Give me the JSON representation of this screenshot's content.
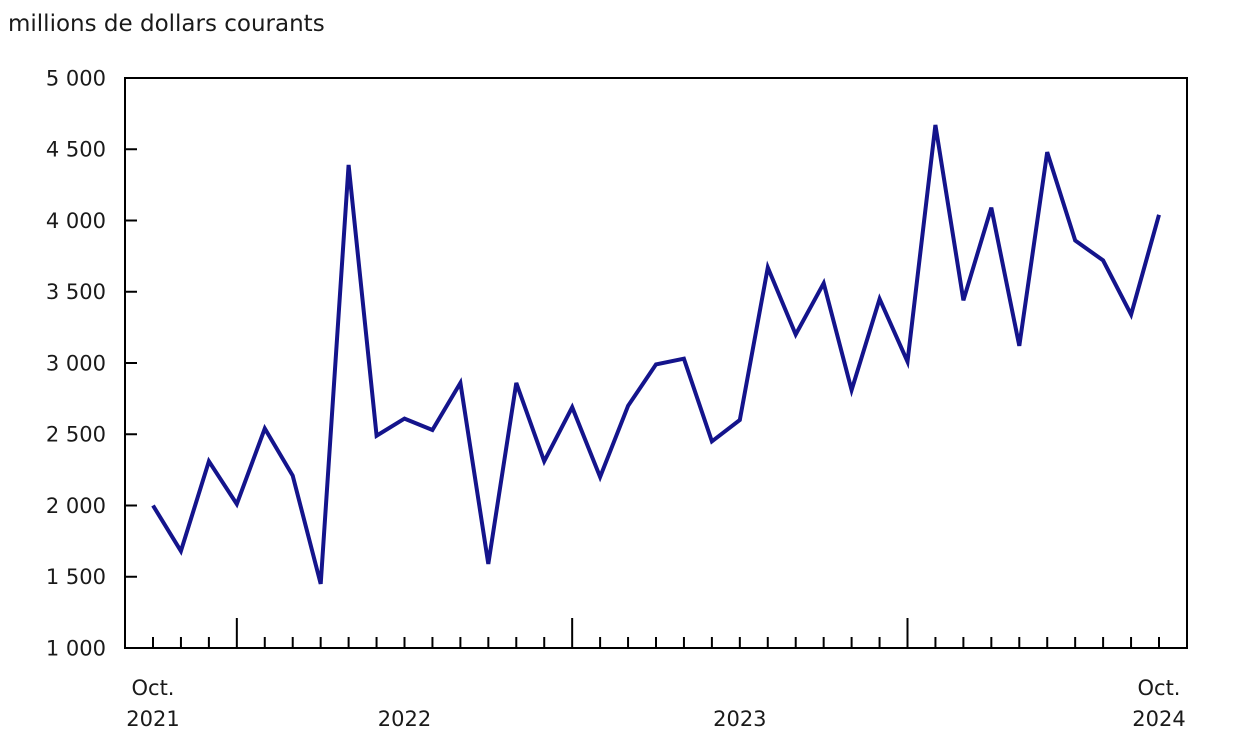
{
  "header": {
    "title": "millions de dollars courants"
  },
  "chart_data": {
    "type": "line",
    "title": "millions de dollars courants",
    "ylabel": "millions de dollars courants",
    "xlabel": "",
    "legend": "none",
    "grid": false,
    "frame": true,
    "line_color": "#14148C",
    "axis_color": "#000000",
    "text_color": "#1a1a1a",
    "ylim": [
      1000,
      5000
    ],
    "y_tick_step": 500,
    "y_tick_labels": [
      "1 000",
      "1 500",
      "2 000",
      "2 500",
      "3 000",
      "3 500",
      "4 000",
      "4 500",
      "5 000"
    ],
    "x": [
      "2021-10",
      "2021-11",
      "2021-12",
      "2022-01",
      "2022-02",
      "2022-03",
      "2022-04",
      "2022-05",
      "2022-06",
      "2022-07",
      "2022-08",
      "2022-09",
      "2022-10",
      "2022-11",
      "2022-12",
      "2023-01",
      "2023-02",
      "2023-03",
      "2023-04",
      "2023-05",
      "2023-06",
      "2023-07",
      "2023-08",
      "2023-09",
      "2023-10",
      "2023-11",
      "2023-12",
      "2024-01",
      "2024-02",
      "2024-03",
      "2024-04",
      "2024-05",
      "2024-06",
      "2024-07",
      "2024-08",
      "2024-09",
      "2024-10"
    ],
    "series": [
      {
        "values": [
          2000,
          1680,
          2310,
          2010,
          2540,
          2210,
          1450,
          4390,
          2490,
          2610,
          2530,
          2860,
          1590,
          2860,
          2310,
          2690,
          2200,
          2700,
          2990,
          3030,
          2450,
          2600,
          3670,
          3200,
          3560,
          2810,
          3450,
          3010,
          4670,
          3440,
          4090,
          3120,
          4480,
          3860,
          3720,
          3340,
          4040
        ]
      }
    ],
    "x_tick_labels": [
      {
        "line1": "Oct.",
        "line2": "2021",
        "at": "2021-10"
      },
      {
        "line1": "",
        "line2": "2022",
        "at": "2022-07"
      },
      {
        "line1": "",
        "line2": "2023",
        "at": "2023-07"
      },
      {
        "line1": "Oct.",
        "line2": "2024",
        "at": "2024-10"
      }
    ],
    "minor_x_ticks": "monthly",
    "major_x_ticks": "january"
  }
}
